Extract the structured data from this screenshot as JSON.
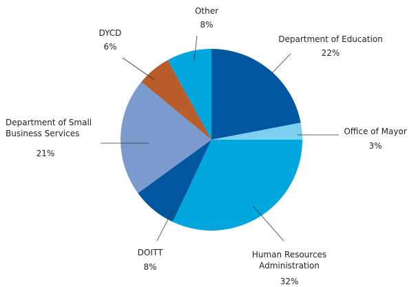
{
  "chart_data": {
    "type": "pie",
    "categories": [
      "Department of Education",
      "Office of Mayor",
      "Human Resources Administration",
      "DOITT",
      "Department of Small Business Services",
      "DYCD",
      "Other"
    ],
    "values": [
      22,
      3,
      32,
      8,
      21,
      6,
      8
    ],
    "value_labels": [
      "22%",
      "3%",
      "32%",
      "8%",
      "21%",
      "6%",
      "8%"
    ],
    "colors": [
      "#0057a0",
      "#7dcff0",
      "#00a6de",
      "#0057a0",
      "#7b9bcf",
      "#b85c2a",
      "#00a6de"
    ]
  }
}
